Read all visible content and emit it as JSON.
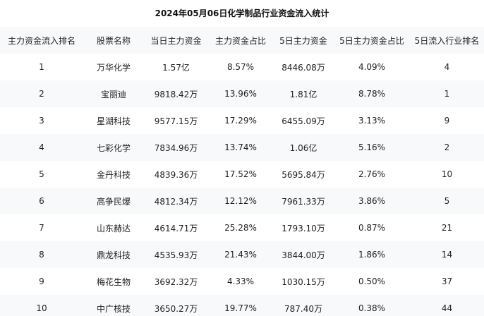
{
  "title": "2024年05月06日化学制品行业资金流入统计",
  "table": {
    "headers": [
      "主力资金流入排名",
      "股票名称",
      "当日主力资金",
      "主力资金占比",
      "5日主力资金",
      "5日主力资金占比",
      "5日流入行业排名"
    ],
    "rows": [
      [
        "1",
        "万华化学",
        "1.57亿",
        "8.57%",
        "8446.08万",
        "4.09%",
        "4"
      ],
      [
        "2",
        "宝丽迪",
        "9818.42万",
        "13.96%",
        "1.81亿",
        "8.78%",
        "1"
      ],
      [
        "3",
        "星湖科技",
        "9577.15万",
        "17.29%",
        "6455.09万",
        "3.13%",
        "9"
      ],
      [
        "4",
        "七彩化学",
        "7834.96万",
        "13.74%",
        "1.06亿",
        "5.16%",
        "2"
      ],
      [
        "5",
        "金丹科技",
        "4839.36万",
        "17.52%",
        "5695.84万",
        "2.76%",
        "10"
      ],
      [
        "6",
        "高争民爆",
        "4812.34万",
        "12.12%",
        "7961.33万",
        "3.86%",
        "5"
      ],
      [
        "7",
        "山东赫达",
        "4614.71万",
        "25.28%",
        "1793.10万",
        "0.87%",
        "21"
      ],
      [
        "8",
        "鼎龙科技",
        "4535.93万",
        "21.43%",
        "3844.00万",
        "1.86%",
        "14"
      ],
      [
        "9",
        "梅花生物",
        "3692.32万",
        "4.33%",
        "1030.15万",
        "0.50%",
        "37"
      ],
      [
        "10",
        "中广核技",
        "3650.27万",
        "19.77%",
        "787.40万",
        "0.38%",
        "44"
      ]
    ]
  }
}
